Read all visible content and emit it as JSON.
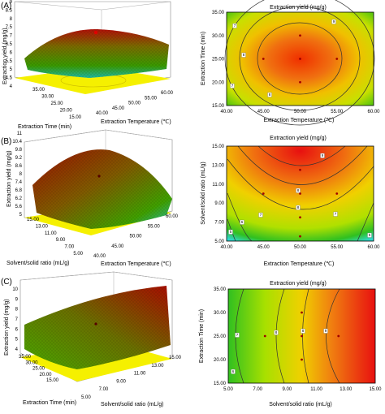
{
  "colors": {
    "red": "#e01010",
    "orange": "#f08a10",
    "yellow": "#f0e000",
    "green": "#38b800",
    "cyan": "#30d8d0",
    "floor": "#f0f000",
    "dot": "#a00000"
  },
  "chart_data": [
    {
      "type": "surface",
      "panel": "(A)",
      "zlabel": "Extraction yield (mg/g)",
      "zticks": [
        "4",
        "4.5",
        "5",
        "5.5",
        "6",
        "6.5",
        "7",
        "7.5",
        "8",
        "8.5",
        "9"
      ],
      "xlabel": "Extraction Temperature (℃)",
      "xticks": [
        "40.00",
        "45.00",
        "50.00",
        "55.00",
        "60.00"
      ],
      "ylabel": "Extraction Time (min)",
      "yticks": [
        "15.00",
        "20.00",
        "25.00",
        "30.00",
        "35.00"
      ]
    },
    {
      "type": "contour",
      "panel": "(A)",
      "title": "Extraction yield (mg/g)",
      "xlabel": "Extraction Temperature (℃)",
      "ylabel": "Extraction Time (min)",
      "xticks": [
        "40.00",
        "45.00",
        "50.00",
        "55.00",
        "60.00"
      ],
      "yticks": [
        "15.00",
        "20.00",
        "25.00",
        "30.00",
        "35.00"
      ],
      "xlim": [
        40,
        60
      ],
      "ylim": [
        15,
        35
      ],
      "center": [
        50,
        25
      ],
      "contour_labels": [
        "7",
        "8",
        "9"
      ],
      "points": [
        [
          50,
          25
        ],
        [
          45,
          25
        ],
        [
          55,
          25
        ],
        [
          50,
          20
        ],
        [
          50,
          30
        ]
      ]
    },
    {
      "type": "surface",
      "panel": "(B)",
      "zlabel": "Extraction yield (mg/g)",
      "zticks": [
        "5",
        "5.6",
        "6.2",
        "6.8",
        "7.4",
        "8",
        "8.6",
        "9.2",
        "9.8",
        "10.4",
        "11"
      ],
      "xlabel": "Extraction Temperature (℃)",
      "xticks": [
        "40.00",
        "45.00",
        "50.00",
        "55.00",
        "60.00"
      ],
      "ylabel": "Solvent/solid ratio (mL/g)",
      "yticks": [
        "5.00",
        "7.00",
        "9.00",
        "11.00",
        "13.00",
        "15.00"
      ]
    },
    {
      "type": "contour",
      "panel": "(B)",
      "title": "Extraction yield (mg/g)",
      "xlabel": "Extraction Temperature (℃)",
      "ylabel": "Solvent/solid ratio (mL/g)",
      "xticks": [
        "40.00",
        "45.00",
        "50.00",
        "55.00",
        "60.00"
      ],
      "yticks": [
        "5.00",
        "7.00",
        "9.00",
        "11.00",
        "13.00",
        "15.00"
      ],
      "xlim": [
        40,
        60
      ],
      "ylim": [
        5,
        15
      ],
      "center": [
        50,
        14
      ],
      "contour_labels": [
        "5",
        "6",
        "7",
        "8",
        "9"
      ],
      "points": [
        [
          50,
          12.5
        ],
        [
          50,
          10
        ],
        [
          45,
          10
        ],
        [
          55,
          10
        ],
        [
          50,
          7.5
        ],
        [
          50,
          5.5
        ]
      ]
    },
    {
      "type": "surface",
      "panel": "(C)",
      "zlabel": "Extraction yield (mg/g)",
      "zticks": [
        "4",
        "5",
        "6",
        "7",
        "8",
        "9",
        "10"
      ],
      "xlabel": "Solvent/solid ratio (mL/g)",
      "xticks": [
        "5.00",
        "7.00",
        "9.00",
        "11.00",
        "13.00",
        "15.00"
      ],
      "ylabel": "Extraction Time (min)",
      "yticks": [
        "15.00",
        "20.00",
        "25.00",
        "30.00",
        "35.00"
      ]
    },
    {
      "type": "contour",
      "panel": "(C)",
      "title": "Extraction yield (mg/g)",
      "xlabel": "Solvent/solid ratio (mL/g)",
      "ylabel": "Extraction Time (min)",
      "xticks": [
        "5.00",
        "7.00",
        "9.00",
        "11.00",
        "13.00",
        "15.00"
      ],
      "yticks": [
        "15.00",
        "20.00",
        "25.00",
        "30.00",
        "35.00"
      ],
      "xlim": [
        5,
        15
      ],
      "ylim": [
        15,
        35
      ],
      "center": [
        15,
        25
      ],
      "contour_labels": [
        "6",
        "7",
        "8",
        "9"
      ],
      "points": [
        [
          7.5,
          25
        ],
        [
          10,
          25
        ],
        [
          10,
          30
        ],
        [
          10,
          20
        ],
        [
          12.5,
          25
        ]
      ]
    }
  ]
}
